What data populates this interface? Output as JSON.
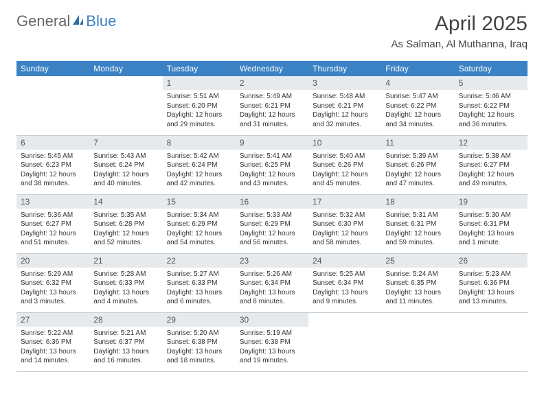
{
  "brand": {
    "part1": "General",
    "part2": "Blue"
  },
  "title": "April 2025",
  "location": "As Salman, Al Muthanna, Iraq",
  "colors": {
    "header_bg": "#3b82c4",
    "daynum_bg": "#e7eaec",
    "text": "#333333",
    "rule": "#c5ced6"
  },
  "weekdays": [
    "Sunday",
    "Monday",
    "Tuesday",
    "Wednesday",
    "Thursday",
    "Friday",
    "Saturday"
  ],
  "weeks": [
    [
      null,
      null,
      {
        "n": "1",
        "sr": "Sunrise: 5:51 AM",
        "ss": "Sunset: 6:20 PM",
        "dl": "Daylight: 12 hours and 29 minutes."
      },
      {
        "n": "2",
        "sr": "Sunrise: 5:49 AM",
        "ss": "Sunset: 6:21 PM",
        "dl": "Daylight: 12 hours and 31 minutes."
      },
      {
        "n": "3",
        "sr": "Sunrise: 5:48 AM",
        "ss": "Sunset: 6:21 PM",
        "dl": "Daylight: 12 hours and 32 minutes."
      },
      {
        "n": "4",
        "sr": "Sunrise: 5:47 AM",
        "ss": "Sunset: 6:22 PM",
        "dl": "Daylight: 12 hours and 34 minutes."
      },
      {
        "n": "5",
        "sr": "Sunrise: 5:46 AM",
        "ss": "Sunset: 6:22 PM",
        "dl": "Daylight: 12 hours and 36 minutes."
      }
    ],
    [
      {
        "n": "6",
        "sr": "Sunrise: 5:45 AM",
        "ss": "Sunset: 6:23 PM",
        "dl": "Daylight: 12 hours and 38 minutes."
      },
      {
        "n": "7",
        "sr": "Sunrise: 5:43 AM",
        "ss": "Sunset: 6:24 PM",
        "dl": "Daylight: 12 hours and 40 minutes."
      },
      {
        "n": "8",
        "sr": "Sunrise: 5:42 AM",
        "ss": "Sunset: 6:24 PM",
        "dl": "Daylight: 12 hours and 42 minutes."
      },
      {
        "n": "9",
        "sr": "Sunrise: 5:41 AM",
        "ss": "Sunset: 6:25 PM",
        "dl": "Daylight: 12 hours and 43 minutes."
      },
      {
        "n": "10",
        "sr": "Sunrise: 5:40 AM",
        "ss": "Sunset: 6:26 PM",
        "dl": "Daylight: 12 hours and 45 minutes."
      },
      {
        "n": "11",
        "sr": "Sunrise: 5:39 AM",
        "ss": "Sunset: 6:26 PM",
        "dl": "Daylight: 12 hours and 47 minutes."
      },
      {
        "n": "12",
        "sr": "Sunrise: 5:38 AM",
        "ss": "Sunset: 6:27 PM",
        "dl": "Daylight: 12 hours and 49 minutes."
      }
    ],
    [
      {
        "n": "13",
        "sr": "Sunrise: 5:36 AM",
        "ss": "Sunset: 6:27 PM",
        "dl": "Daylight: 12 hours and 51 minutes."
      },
      {
        "n": "14",
        "sr": "Sunrise: 5:35 AM",
        "ss": "Sunset: 6:28 PM",
        "dl": "Daylight: 12 hours and 52 minutes."
      },
      {
        "n": "15",
        "sr": "Sunrise: 5:34 AM",
        "ss": "Sunset: 6:29 PM",
        "dl": "Daylight: 12 hours and 54 minutes."
      },
      {
        "n": "16",
        "sr": "Sunrise: 5:33 AM",
        "ss": "Sunset: 6:29 PM",
        "dl": "Daylight: 12 hours and 56 minutes."
      },
      {
        "n": "17",
        "sr": "Sunrise: 5:32 AM",
        "ss": "Sunset: 6:30 PM",
        "dl": "Daylight: 12 hours and 58 minutes."
      },
      {
        "n": "18",
        "sr": "Sunrise: 5:31 AM",
        "ss": "Sunset: 6:31 PM",
        "dl": "Daylight: 12 hours and 59 minutes."
      },
      {
        "n": "19",
        "sr": "Sunrise: 5:30 AM",
        "ss": "Sunset: 6:31 PM",
        "dl": "Daylight: 13 hours and 1 minute."
      }
    ],
    [
      {
        "n": "20",
        "sr": "Sunrise: 5:29 AM",
        "ss": "Sunset: 6:32 PM",
        "dl": "Daylight: 13 hours and 3 minutes."
      },
      {
        "n": "21",
        "sr": "Sunrise: 5:28 AM",
        "ss": "Sunset: 6:33 PM",
        "dl": "Daylight: 13 hours and 4 minutes."
      },
      {
        "n": "22",
        "sr": "Sunrise: 5:27 AM",
        "ss": "Sunset: 6:33 PM",
        "dl": "Daylight: 13 hours and 6 minutes."
      },
      {
        "n": "23",
        "sr": "Sunrise: 5:26 AM",
        "ss": "Sunset: 6:34 PM",
        "dl": "Daylight: 13 hours and 8 minutes."
      },
      {
        "n": "24",
        "sr": "Sunrise: 5:25 AM",
        "ss": "Sunset: 6:34 PM",
        "dl": "Daylight: 13 hours and 9 minutes."
      },
      {
        "n": "25",
        "sr": "Sunrise: 5:24 AM",
        "ss": "Sunset: 6:35 PM",
        "dl": "Daylight: 13 hours and 11 minutes."
      },
      {
        "n": "26",
        "sr": "Sunrise: 5:23 AM",
        "ss": "Sunset: 6:36 PM",
        "dl": "Daylight: 13 hours and 13 minutes."
      }
    ],
    [
      {
        "n": "27",
        "sr": "Sunrise: 5:22 AM",
        "ss": "Sunset: 6:36 PM",
        "dl": "Daylight: 13 hours and 14 minutes."
      },
      {
        "n": "28",
        "sr": "Sunrise: 5:21 AM",
        "ss": "Sunset: 6:37 PM",
        "dl": "Daylight: 13 hours and 16 minutes."
      },
      {
        "n": "29",
        "sr": "Sunrise: 5:20 AM",
        "ss": "Sunset: 6:38 PM",
        "dl": "Daylight: 13 hours and 18 minutes."
      },
      {
        "n": "30",
        "sr": "Sunrise: 5:19 AM",
        "ss": "Sunset: 6:38 PM",
        "dl": "Daylight: 13 hours and 19 minutes."
      },
      null,
      null,
      null
    ]
  ]
}
